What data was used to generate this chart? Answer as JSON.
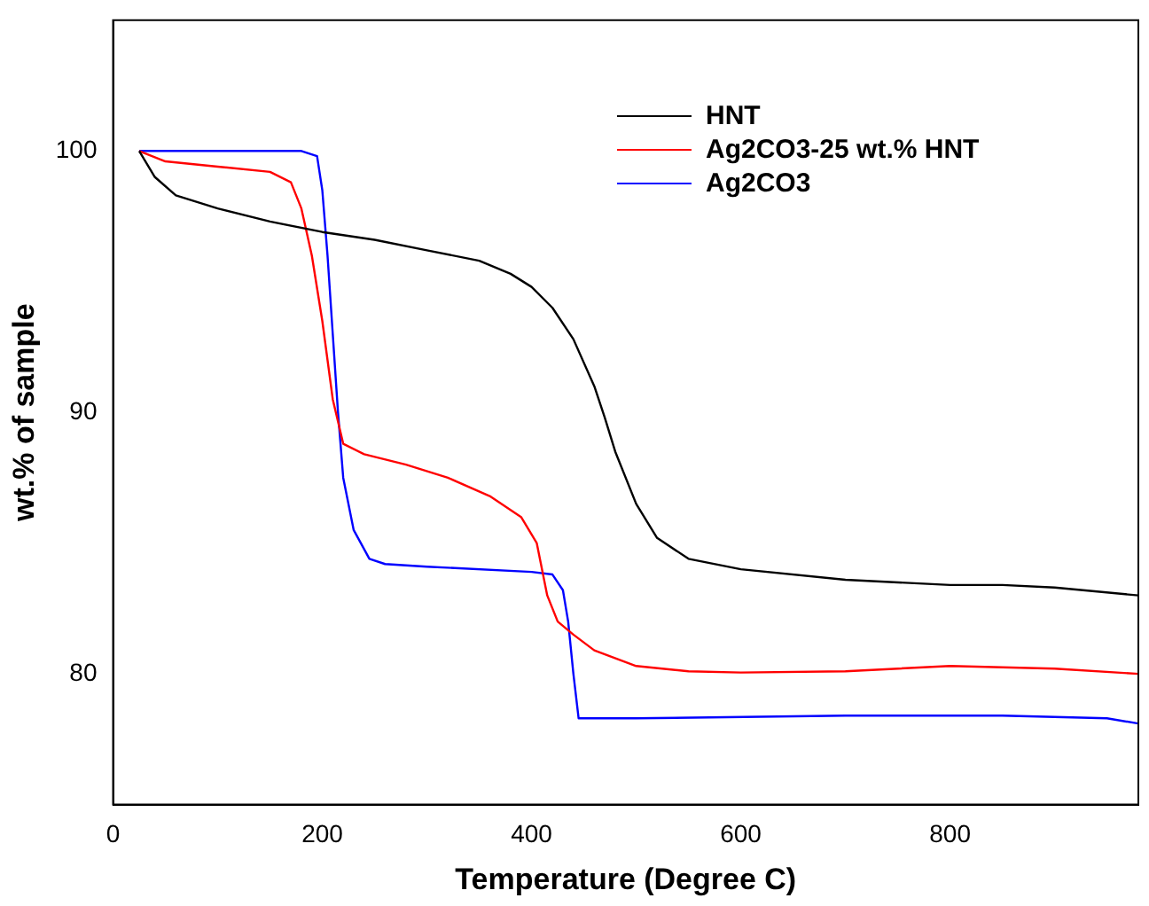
{
  "chart_data": {
    "type": "line",
    "xlabel": "Temperature (Degree C)",
    "ylabel": "wt.% of sample",
    "xlim": [
      0,
      980
    ],
    "ylim": [
      75,
      105
    ],
    "xticks": [
      0,
      200,
      400,
      600,
      800
    ],
    "yticks": [
      80,
      90,
      100
    ],
    "grid": false,
    "legend": "top right",
    "marker": "none",
    "line_style": "solid",
    "series": [
      {
        "name": "HNT",
        "color": "#000000",
        "x": [
          25,
          40,
          60,
          100,
          150,
          200,
          250,
          300,
          350,
          380,
          400,
          420,
          440,
          460,
          470,
          480,
          500,
          520,
          550,
          600,
          700,
          800,
          850,
          900,
          980
        ],
        "values": [
          100,
          99,
          98.3,
          97.8,
          97.3,
          96.9,
          96.6,
          96.2,
          95.8,
          95.3,
          94.8,
          94.0,
          92.8,
          91,
          89.8,
          88.5,
          86.5,
          85.2,
          84.4,
          84.0,
          83.6,
          83.4,
          83.4,
          83.3,
          83.0
        ]
      },
      {
        "name": "Ag2CO3-25 wt.% HNT",
        "color": "#ff0000",
        "x": [
          25,
          50,
          100,
          150,
          170,
          180,
          190,
          200,
          210,
          220,
          240,
          280,
          320,
          360,
          390,
          405,
          415,
          425,
          440,
          460,
          500,
          550,
          600,
          700,
          800,
          900,
          980
        ],
        "values": [
          100,
          99.6,
          99.4,
          99.2,
          98.8,
          97.8,
          96,
          93.5,
          90.5,
          88.8,
          88.4,
          88.0,
          87.5,
          86.8,
          86.0,
          85.0,
          83.0,
          82.0,
          81.5,
          80.9,
          80.3,
          80.1,
          80.05,
          80.1,
          80.3,
          80.2,
          80.0
        ]
      },
      {
        "name": "Ag2CO3",
        "color": "#0000ff",
        "x": [
          25,
          100,
          180,
          195,
          200,
          205,
          210,
          215,
          220,
          230,
          245,
          260,
          300,
          400,
          420,
          430,
          435,
          440,
          445,
          500,
          700,
          850,
          950,
          980
        ],
        "values": [
          100,
          100,
          100,
          99.8,
          98.5,
          96,
          93,
          90,
          87.5,
          85.5,
          84.4,
          84.2,
          84.1,
          83.9,
          83.8,
          83.2,
          82,
          80,
          78.3,
          78.3,
          78.4,
          78.4,
          78.3,
          78.1
        ]
      }
    ]
  }
}
